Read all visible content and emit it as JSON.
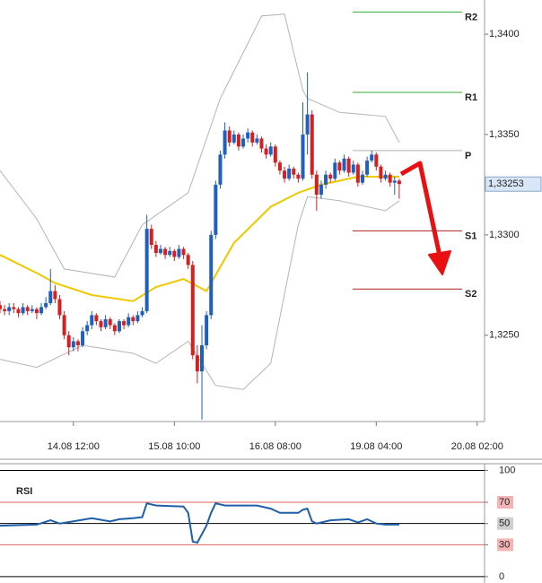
{
  "chart_data": [
    {
      "type": "candlestick",
      "x": [
        -16,
        -15,
        -14,
        -13,
        -12,
        -11,
        -10,
        -9,
        -8,
        -7,
        -6,
        -5,
        -4,
        -3,
        -2,
        -1,
        0,
        1,
        2,
        3,
        4,
        5,
        6,
        7,
        8,
        9,
        10,
        11,
        12,
        13,
        14,
        15,
        16,
        17,
        18,
        19,
        20,
        21,
        22,
        23,
        24,
        25,
        26,
        27,
        28,
        29,
        30,
        31,
        32,
        33,
        34,
        35,
        36,
        37,
        38,
        39,
        40,
        41,
        42,
        43,
        44,
        45,
        46,
        47,
        48,
        49,
        50,
        51,
        52,
        53,
        54,
        55,
        56,
        57,
        58,
        59,
        60,
        61,
        62,
        63,
        64,
        65,
        66,
        67,
        68,
        69,
        70,
        71
      ],
      "open": [
        1.3265,
        1.3263,
        1.3262,
        1.3264,
        1.3263,
        1.3261,
        1.3264,
        1.3262,
        1.3263,
        1.3261,
        1.3264,
        1.3266,
        1.3272,
        1.3268,
        1.326,
        1.325,
        1.3244,
        1.3247,
        1.3245,
        1.3252,
        1.3255,
        1.326,
        1.3257,
        1.3254,
        1.3258,
        1.3255,
        1.3252,
        1.3257,
        1.3255,
        1.3259,
        1.3257,
        1.326,
        1.3262,
        1.3303,
        1.3295,
        1.3291,
        1.3293,
        1.329,
        1.3292,
        1.3289,
        1.3293,
        1.329,
        1.3285,
        1.324,
        1.3232,
        1.3245,
        1.326,
        1.33,
        1.3325,
        1.334,
        1.3352,
        1.3346,
        1.335,
        1.3344,
        1.3348,
        1.3351,
        1.3346,
        1.3348,
        1.3343,
        1.334,
        1.3344,
        1.3336,
        1.3332,
        1.3328,
        1.3333,
        1.333,
        1.3328,
        1.335,
        1.336,
        1.333,
        1.332,
        1.3325,
        1.333,
        1.3328,
        1.3336,
        1.3332,
        1.3338,
        1.3331,
        1.3335,
        1.3326,
        1.333,
        1.3337,
        1.334,
        1.3334,
        1.3328,
        1.333,
        1.3326,
        1.3327
      ],
      "high": [
        1.3267,
        1.3265,
        1.3266,
        1.3266,
        1.3264,
        1.3266,
        1.3265,
        1.3265,
        1.3264,
        1.3266,
        1.3269,
        1.3283,
        1.3275,
        1.327,
        1.3262,
        1.3252,
        1.3249,
        1.3248,
        1.3254,
        1.3257,
        1.3262,
        1.3261,
        1.3258,
        1.326,
        1.3259,
        1.3256,
        1.3258,
        1.3258,
        1.3261,
        1.326,
        1.3262,
        1.3264,
        1.331,
        1.3305,
        1.3297,
        1.3295,
        1.3294,
        1.3294,
        1.3293,
        1.3295,
        1.3294,
        1.3291,
        1.3287,
        1.3245,
        1.3255,
        1.3262,
        1.3302,
        1.3327,
        1.3342,
        1.3356,
        1.3354,
        1.3352,
        1.3351,
        1.335,
        1.3353,
        1.3352,
        1.335,
        1.3349,
        1.3345,
        1.3346,
        1.3345,
        1.3337,
        1.3334,
        1.3335,
        1.3334,
        1.3331,
        1.3366,
        1.3381,
        1.3362,
        1.3332,
        1.3327,
        1.3332,
        1.3331,
        1.3338,
        1.3337,
        1.334,
        1.3339,
        1.3337,
        1.3336,
        1.3332,
        1.3339,
        1.3342,
        1.3341,
        1.3335,
        1.3332,
        1.3331,
        1.3329,
        1.3328
      ],
      "low": [
        1.3261,
        1.326,
        1.326,
        1.3261,
        1.3259,
        1.326,
        1.326,
        1.3261,
        1.3258,
        1.326,
        1.3263,
        1.3265,
        1.3266,
        1.3258,
        1.3248,
        1.324,
        1.3242,
        1.3242,
        1.3244,
        1.325,
        1.3253,
        1.3255,
        1.3252,
        1.3253,
        1.3253,
        1.325,
        1.3251,
        1.3253,
        1.3254,
        1.3255,
        1.3256,
        1.3259,
        1.3261,
        1.3293,
        1.3289,
        1.329,
        1.3288,
        1.3289,
        1.3287,
        1.3288,
        1.3288,
        1.3283,
        1.3238,
        1.3226,
        1.3208,
        1.3243,
        1.3258,
        1.3298,
        1.3323,
        1.3338,
        1.3344,
        1.3345,
        1.3342,
        1.3343,
        1.3346,
        1.3344,
        1.3345,
        1.3341,
        1.3338,
        1.3339,
        1.3334,
        1.333,
        1.3326,
        1.3327,
        1.3328,
        1.3326,
        1.3327,
        1.334,
        1.3328,
        1.3312,
        1.3318,
        1.3323,
        1.3326,
        1.3327,
        1.333,
        1.3331,
        1.3329,
        1.333,
        1.3324,
        1.3325,
        1.3329,
        1.3336,
        1.3332,
        1.3326,
        1.3327,
        1.3324,
        1.332,
        1.3318
      ],
      "close": [
        1.3263,
        1.3262,
        1.3264,
        1.3263,
        1.3261,
        1.3264,
        1.3262,
        1.3263,
        1.3261,
        1.3264,
        1.3266,
        1.3272,
        1.3268,
        1.326,
        1.325,
        1.3244,
        1.3247,
        1.3245,
        1.3252,
        1.3255,
        1.326,
        1.3257,
        1.3254,
        1.3258,
        1.3255,
        1.3252,
        1.3257,
        1.3255,
        1.3259,
        1.3257,
        1.326,
        1.3262,
        1.3303,
        1.3295,
        1.3291,
        1.3293,
        1.329,
        1.3292,
        1.3289,
        1.3293,
        1.329,
        1.3285,
        1.324,
        1.3232,
        1.3245,
        1.326,
        1.33,
        1.3325,
        1.334,
        1.3352,
        1.3346,
        1.335,
        1.3344,
        1.3348,
        1.3351,
        1.3346,
        1.3348,
        1.3343,
        1.334,
        1.3344,
        1.3336,
        1.3332,
        1.3328,
        1.3333,
        1.333,
        1.3328,
        1.335,
        1.336,
        1.333,
        1.332,
        1.3325,
        1.333,
        1.3328,
        1.3336,
        1.3332,
        1.3338,
        1.3331,
        1.3335,
        1.3326,
        1.333,
        1.3337,
        1.334,
        1.3334,
        1.3328,
        1.333,
        1.3326,
        1.3327,
        1.33253
      ],
      "up_color": "#1f5fbf",
      "down_color": "#d42020",
      "series": [
        {
          "color": "#f0c800",
          "x": [
            -16,
            -8,
            -4,
            4,
            13,
            18,
            24,
            29,
            35,
            43,
            49,
            54,
            62,
            71
          ],
          "values": [
            1.329,
            1.3281,
            1.3276,
            1.327,
            1.3267,
            1.3274,
            1.3278,
            1.3272,
            1.3296,
            1.3314,
            1.3321,
            1.3325,
            1.3329,
            1.3329
          ]
        },
        {
          "color": "#b4b4b4",
          "x": [
            -16,
            -8,
            -2,
            9,
            15,
            25,
            32,
            41,
            46,
            50,
            51,
            58,
            68,
            71
          ],
          "values": [
            1.3332,
            1.3308,
            1.3283,
            1.3279,
            1.3305,
            1.3321,
            1.3368,
            1.3409,
            1.341,
            1.3372,
            1.3368,
            1.3361,
            1.3359,
            1.3346
          ]
        },
        {
          "color": "#b4b4b4",
          "x": [
            -16,
            -8,
            2,
            13,
            18,
            25,
            31,
            37,
            43,
            49,
            51,
            58,
            68,
            71
          ],
          "values": [
            1.3238,
            1.3234,
            1.3245,
            1.3241,
            1.3236,
            1.3247,
            1.3225,
            1.3223,
            1.3236,
            1.3305,
            1.3319,
            1.3317,
            1.3312,
            1.3317
          ]
        }
      ],
      "levels": [
        {
          "label": "R2",
          "value": 1.3411,
          "color": "#33aa33"
        },
        {
          "label": "R1",
          "value": 1.3371,
          "color": "#33aa33"
        },
        {
          "label": "P",
          "value": 1.3342,
          "color": "#b0b0b0"
        },
        {
          "label": "S1",
          "value": 1.3302,
          "color": "#b02020"
        },
        {
          "label": "S2",
          "value": 1.3273,
          "color": "#b02020"
        }
      ],
      "last_price": {
        "value": 1.33253,
        "label": "1,33253"
      },
      "xlim": [
        -16,
        89.6
      ],
      "xticks": [
        {
          "value": 0,
          "label": "14.08 12:00"
        },
        {
          "value": 22,
          "label": "15.08 10:00"
        },
        {
          "value": 44,
          "label": "16.08 08:00"
        },
        {
          "value": 66,
          "label": "19.08 04:00"
        },
        {
          "value": 88,
          "label": "20.08 02:00"
        }
      ],
      "ylim": [
        1.3207,
        1.3417
      ],
      "yticks": [
        {
          "value": 1.325,
          "label": "1,3250"
        },
        {
          "value": 1.33,
          "label": "1,3300"
        },
        {
          "value": 1.335,
          "label": "1,3350"
        },
        {
          "value": 1.34,
          "label": "1,3400"
        }
      ]
    },
    {
      "type": "line",
      "title": "RSI",
      "series": [
        {
          "color": "#1f5fa8",
          "x": [
            -16,
            -8,
            -5,
            -3,
            0,
            4,
            8,
            10,
            13,
            15,
            16,
            18,
            24,
            25,
            26,
            27,
            28,
            29,
            30,
            31,
            33,
            40,
            43,
            45,
            49,
            50,
            51,
            52,
            53,
            56,
            60,
            62,
            64,
            66,
            68,
            71
          ],
          "values": [
            48,
            49,
            53,
            50,
            52,
            55,
            52,
            54,
            55,
            56,
            69,
            67,
            66,
            60,
            33,
            32,
            40,
            48,
            60,
            69,
            67,
            67,
            64,
            60,
            60,
            63,
            64,
            52,
            50,
            53,
            54,
            51,
            54,
            50,
            49,
            49
          ]
        }
      ],
      "xlim": [
        -16,
        89.6
      ],
      "ylim": [
        -6,
        108
      ],
      "yticks": [
        0,
        30,
        50,
        70,
        100
      ],
      "grid_colors": [
        "#000000",
        "#e06060",
        "#000000",
        "#e06060",
        "#000000"
      ],
      "tick_backgrounds": [
        "none",
        "#f2b4b4",
        "#cfcfcf",
        "#f2b4b4",
        "none"
      ]
    }
  ]
}
